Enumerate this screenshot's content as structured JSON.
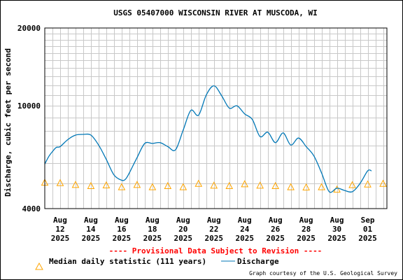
{
  "chart_data": {
    "type": "line",
    "title": "USGS 05407000 WISCONSIN RIVER AT MUSCODA, WI",
    "ylabel": "Discharge, cubic feet per second",
    "xlabel": "",
    "y_scale": "log",
    "ylim": [
      4000,
      20000
    ],
    "y_ticks": [
      "4000",
      "10000",
      "20000"
    ],
    "x_ticks": [
      {
        "line1": "Aug",
        "line2": "12",
        "line3": "2025"
      },
      {
        "line1": "Aug",
        "line2": "14",
        "line3": "2025"
      },
      {
        "line1": "Aug",
        "line2": "16",
        "line3": "2025"
      },
      {
        "line1": "Aug",
        "line2": "18",
        "line3": "2025"
      },
      {
        "line1": "Aug",
        "line2": "20",
        "line3": "2025"
      },
      {
        "line1": "Aug",
        "line2": "22",
        "line3": "2025"
      },
      {
        "line1": "Aug",
        "line2": "24",
        "line3": "2025"
      },
      {
        "line1": "Aug",
        "line2": "26",
        "line3": "2025"
      },
      {
        "line1": "Aug",
        "line2": "28",
        "line3": "2025"
      },
      {
        "line1": "Aug",
        "line2": "30",
        "line3": "2025"
      },
      {
        "line1": "Sep",
        "line2": "01",
        "line3": "2025"
      }
    ],
    "x_tick_dates": [
      "2025-08-12",
      "2025-08-14",
      "2025-08-16",
      "2025-08-18",
      "2025-08-20",
      "2025-08-22",
      "2025-08-24",
      "2025-08-26",
      "2025-08-28",
      "2025-08-30",
      "2025-09-01"
    ],
    "xlim": [
      "2025-08-11 00:00",
      "2025-09-02 06:00"
    ],
    "grid": true,
    "series": [
      {
        "name": "Discharge",
        "color": "#0077b6",
        "x": [
          "2025-08-11 00:00",
          "2025-08-11 06:00",
          "2025-08-11 12:00",
          "2025-08-11 18:00",
          "2025-08-12 00:00",
          "2025-08-12 12:00",
          "2025-08-13 00:00",
          "2025-08-13 12:00",
          "2025-08-14 00:00",
          "2025-08-14 12:00",
          "2025-08-15 00:00",
          "2025-08-15 12:00",
          "2025-08-16 00:00",
          "2025-08-16 06:00",
          "2025-08-16 12:00",
          "2025-08-17 00:00",
          "2025-08-17 12:00",
          "2025-08-18 00:00",
          "2025-08-18 12:00",
          "2025-08-19 00:00",
          "2025-08-19 12:00",
          "2025-08-20 00:00",
          "2025-08-20 12:00",
          "2025-08-21 00:00",
          "2025-08-21 12:00",
          "2025-08-22 00:00",
          "2025-08-22 12:00",
          "2025-08-23 00:00",
          "2025-08-23 12:00",
          "2025-08-24 00:00",
          "2025-08-24 12:00",
          "2025-08-25 00:00",
          "2025-08-25 12:00",
          "2025-08-26 00:00",
          "2025-08-26 12:00",
          "2025-08-27 00:00",
          "2025-08-27 12:00",
          "2025-08-28 00:00",
          "2025-08-28 12:00",
          "2025-08-29 00:00",
          "2025-08-29 12:00",
          "2025-08-30 00:00",
          "2025-08-30 12:00",
          "2025-08-31 00:00",
          "2025-08-31 12:00",
          "2025-09-01 00:00",
          "2025-09-01 06:00"
        ],
        "values": [
          5950,
          6350,
          6650,
          6900,
          6950,
          7400,
          7700,
          7750,
          7700,
          7050,
          6200,
          5400,
          5150,
          5200,
          5500,
          6300,
          7150,
          7150,
          7200,
          6950,
          6750,
          8050,
          9600,
          9200,
          11000,
          11950,
          10950,
          9800,
          10000,
          9300,
          8850,
          7600,
          7900,
          7200,
          7850,
          7050,
          7500,
          6950,
          6400,
          5500,
          4650,
          4800,
          4700,
          4650,
          5000,
          5600,
          5600
        ]
      }
    ],
    "median": {
      "name": "Median daily statistic (111 years)",
      "color": "#ffa500",
      "x": [
        "2025-08-11",
        "2025-08-12",
        "2025-08-13",
        "2025-08-14",
        "2025-08-15",
        "2025-08-16",
        "2025-08-17",
        "2025-08-18",
        "2025-08-19",
        "2025-08-20",
        "2025-08-21",
        "2025-08-22",
        "2025-08-23",
        "2025-08-24",
        "2025-08-25",
        "2025-08-26",
        "2025-08-27",
        "2025-08-28",
        "2025-08-29",
        "2025-08-30",
        "2025-08-31",
        "2025-09-01",
        "2025-09-02"
      ],
      "values": [
        5050,
        5030,
        4950,
        4900,
        4930,
        4850,
        4950,
        4850,
        4900,
        4850,
        5000,
        4920,
        4900,
        4980,
        4920,
        4900,
        4850,
        4840,
        4850,
        4750,
        4940,
        4970,
        5000
      ]
    },
    "provisional_note": "---- Provisional Data Subject to Revision ----",
    "legend": [
      "Median daily statistic (111 years)",
      "Discharge"
    ],
    "legend_position": "bottom-left",
    "credit": "Graph courtesy of the U.S. Geological Survey"
  }
}
